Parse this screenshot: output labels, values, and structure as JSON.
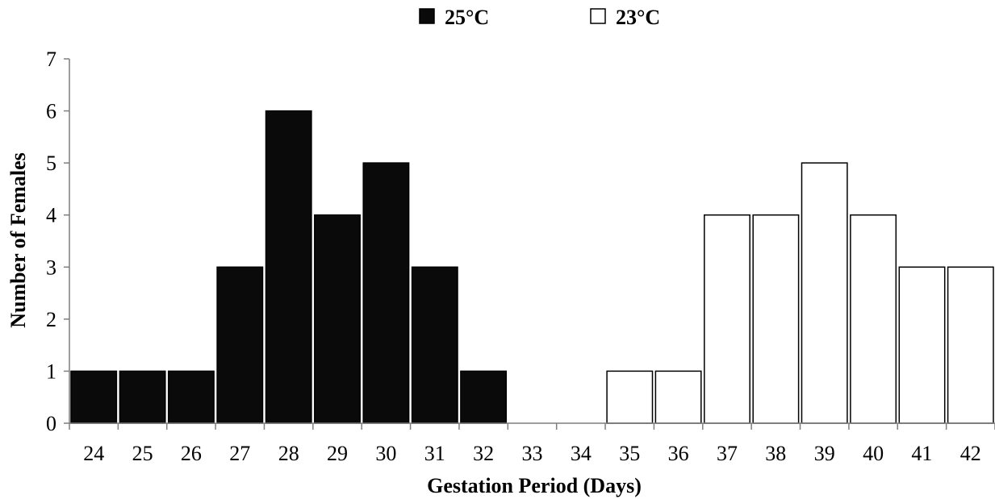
{
  "chart_data": {
    "type": "bar",
    "xlabel": "Gestation Period (Days)",
    "ylabel": "Number of Females",
    "ylim": [
      0,
      7
    ],
    "y_ticks": [
      "0",
      "1",
      "2",
      "3",
      "4",
      "5",
      "6",
      "7"
    ],
    "categories": [
      "24",
      "25",
      "26",
      "27",
      "28",
      "29",
      "30",
      "31",
      "32",
      "33",
      "34",
      "35",
      "36",
      "37",
      "38",
      "39",
      "40",
      "41",
      "42"
    ],
    "series": [
      {
        "name": "25°C",
        "color": "#0a0a0a",
        "values": [
          1,
          1,
          1,
          3,
          6,
          4,
          5,
          3,
          1,
          0,
          0,
          0,
          0,
          0,
          0,
          0,
          0,
          0,
          0
        ]
      },
      {
        "name": "23°C",
        "color": "#ffffff",
        "values": [
          0,
          0,
          0,
          0,
          0,
          0,
          0,
          0,
          0,
          0,
          0,
          1,
          1,
          4,
          4,
          5,
          4,
          3,
          3
        ]
      }
    ],
    "legend_position": "top-center",
    "grid": false
  }
}
